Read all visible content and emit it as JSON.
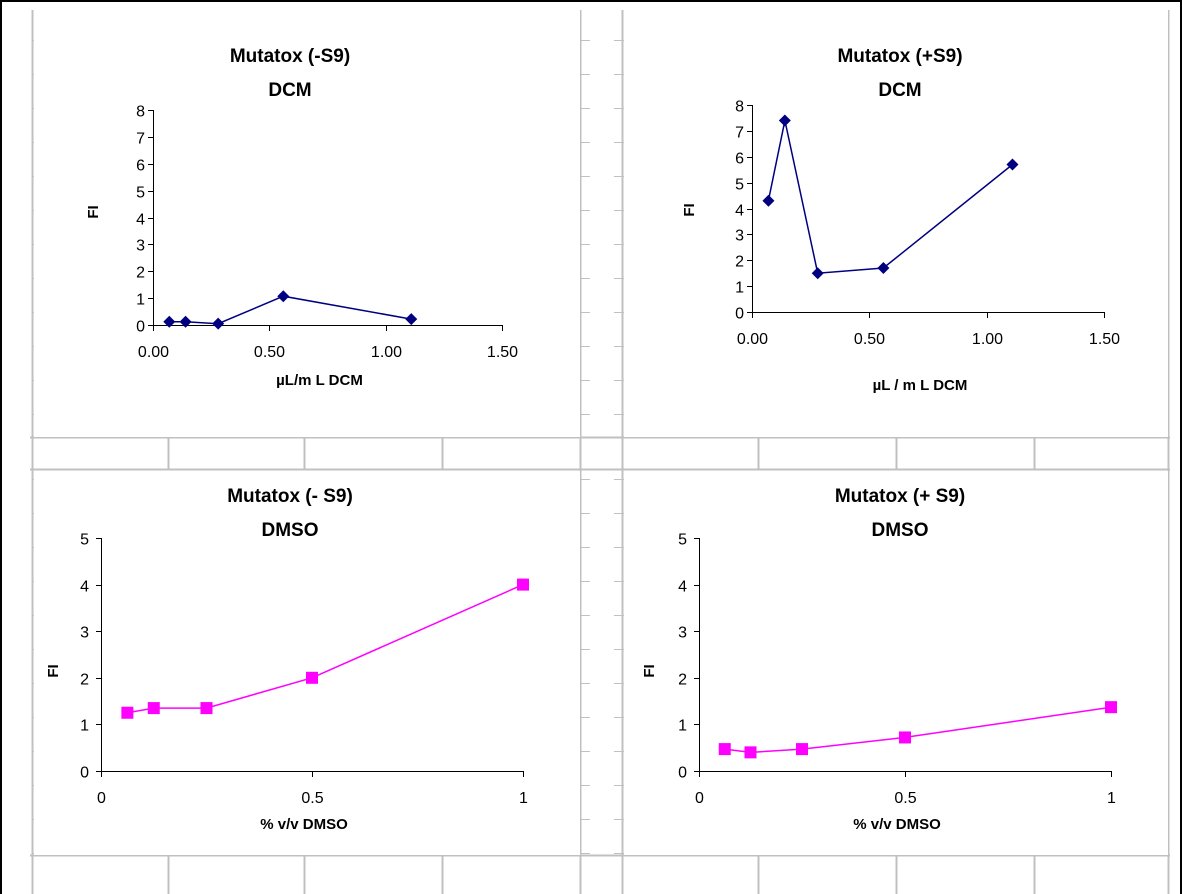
{
  "colors": {
    "grid": "#c0c0c0",
    "border": "#000000",
    "navy_series": "#000080",
    "magenta_series": "#ff00ff"
  },
  "chart_data": [
    {
      "type": "scatter",
      "title": [
        "Mutatox (-S9)",
        "DCM"
      ],
      "xlabel": "µL/m L DCM",
      "ylabel": "FI",
      "xlim": [
        0,
        1.5
      ],
      "ylim": [
        0,
        8
      ],
      "x_ticks": [
        "0.00",
        "0.50",
        "1.00",
        "1.50"
      ],
      "y_ticks": [
        "0",
        "1",
        "2",
        "3",
        "4",
        "5",
        "6",
        "7",
        "8"
      ],
      "marker": "diamond",
      "color": "#000080",
      "series": [
        {
          "x": [
            0.07,
            0.14,
            0.28,
            0.56,
            1.11
          ],
          "y": [
            0.12,
            0.12,
            0.05,
            1.07,
            0.22
          ]
        }
      ]
    },
    {
      "type": "scatter",
      "title": [
        "Mutatox (+S9)",
        "DCM"
      ],
      "xlabel": "µL / m L DCM",
      "ylabel": "FI",
      "xlim": [
        0,
        1.5
      ],
      "ylim": [
        0,
        8
      ],
      "x_ticks": [
        "0.00",
        "0.50",
        "1.00",
        "1.50"
      ],
      "y_ticks": [
        "0",
        "1",
        "2",
        "3",
        "4",
        "5",
        "6",
        "7",
        "8"
      ],
      "marker": "diamond",
      "color": "#000080",
      "series": [
        {
          "x": [
            0.07,
            0.14,
            0.28,
            0.56,
            1.11
          ],
          "y": [
            4.3,
            7.4,
            1.5,
            1.7,
            5.7
          ]
        }
      ]
    },
    {
      "type": "scatter",
      "title": [
        "Mutatox (- S9)",
        "DMSO"
      ],
      "xlabel": "% v/v DMSO",
      "ylabel": "FI",
      "xlim": [
        0,
        1
      ],
      "ylim": [
        0,
        5
      ],
      "x_ticks": [
        "0",
        "0.5",
        "1"
      ],
      "y_ticks": [
        "0",
        "1",
        "2",
        "3",
        "4",
        "5"
      ],
      "marker": "square",
      "color": "#ff00ff",
      "series": [
        {
          "x": [
            0.0625,
            0.125,
            0.25,
            0.5,
            1.0
          ],
          "y": [
            1.25,
            1.35,
            1.35,
            2.0,
            4.0
          ]
        }
      ]
    },
    {
      "type": "scatter",
      "title": [
        "Mutatox (+ S9)",
        "DMSO"
      ],
      "xlabel": "% v/v DMSO",
      "ylabel": "FI",
      "xlim": [
        0,
        1
      ],
      "ylim": [
        0,
        5
      ],
      "x_ticks": [
        "0",
        "0.5",
        "1"
      ],
      "y_ticks": [
        "0",
        "1",
        "2",
        "3",
        "4",
        "5"
      ],
      "marker": "square",
      "color": "#ff00ff",
      "series": [
        {
          "x": [
            0.0625,
            0.125,
            0.25,
            0.5,
            1.0
          ],
          "y": [
            0.47,
            0.4,
            0.47,
            0.72,
            1.37
          ]
        }
      ]
    }
  ]
}
